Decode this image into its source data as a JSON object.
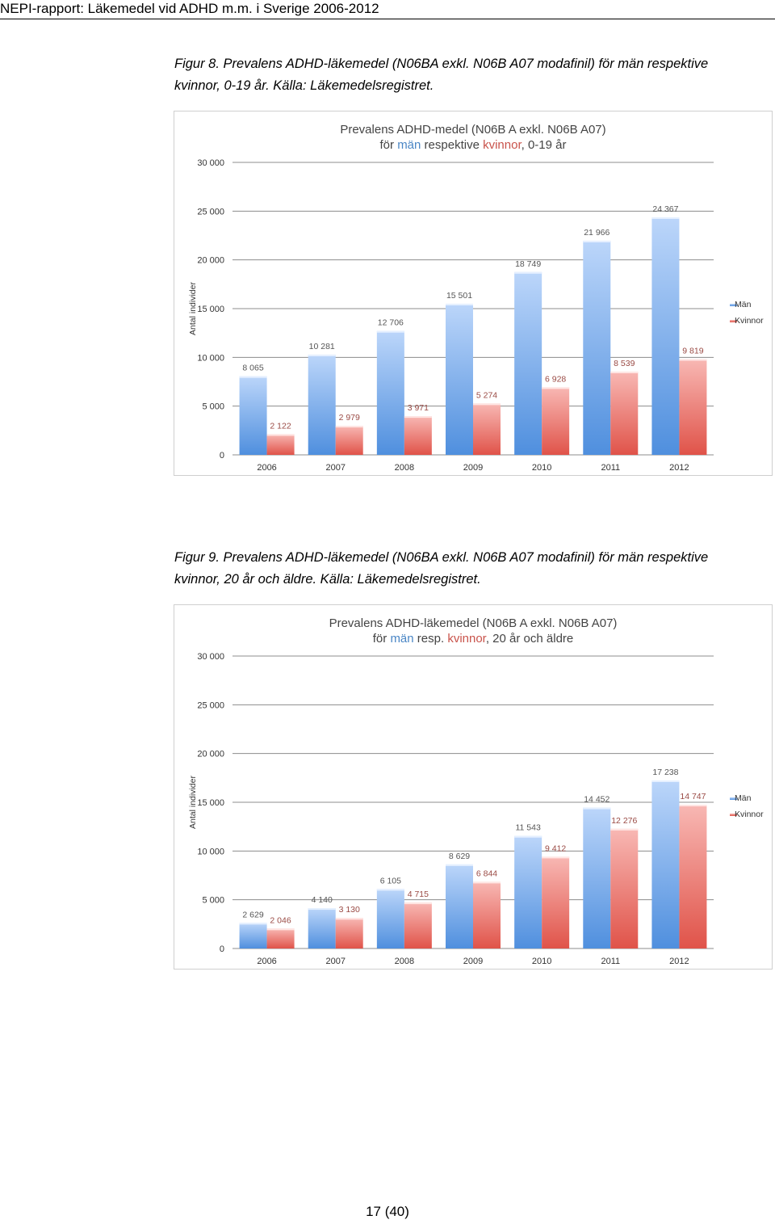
{
  "header": {
    "title": "NEPI-rapport: Läkemedel vid ADHD m.m. i Sverige 2006-2012"
  },
  "figures": [
    {
      "caption": "Figur 8. Prevalens ADHD-läkemedel (N06BA exkl. N06B A07 modafinil) för män respektive kvinnor, 0-19 år. Källa: Läkemedelsregistret.",
      "chart_data": {
        "type": "bar",
        "title_line1": "Prevalens ADHD-medel (N06B A exkl. N06B A07)",
        "title_line2": [
          {
            "text": "för ",
            "role": "plain"
          },
          {
            "text": "män",
            "role": "men"
          },
          {
            "text": " respektive ",
            "role": "plain"
          },
          {
            "text": "kvinnor",
            "role": "women"
          },
          {
            "text": ", 0-19 år",
            "role": "plain"
          }
        ],
        "ylabel": "Antal individer",
        "xlabel": "",
        "ylim": [
          0,
          30000
        ],
        "ytick_values": [
          0,
          5000,
          10000,
          15000,
          20000,
          25000,
          30000
        ],
        "ytick_labels": [
          "0",
          "5 000",
          "10 000",
          "15 000",
          "20 000",
          "25 000",
          "30 000"
        ],
        "categories": [
          "2006",
          "2007",
          "2008",
          "2009",
          "2010",
          "2011",
          "2012"
        ],
        "series": [
          {
            "name": "Män",
            "values": [
              8065,
              10281,
              12706,
              15501,
              18749,
              21966,
              24367
            ],
            "labels": [
              "8 065",
              "10 281",
              "12 706",
              "15 501",
              "18 749",
              "21 966",
              "24 367"
            ]
          },
          {
            "name": "Kvinnor",
            "values": [
              2122,
              2979,
              3971,
              5274,
              6928,
              8539,
              9819
            ],
            "labels": [
              "2 122",
              "2 979",
              "3 971",
              "5 274",
              "6 928",
              "8 539",
              "9 819"
            ]
          }
        ],
        "grid": true,
        "legend_position": "right"
      }
    },
    {
      "caption": "Figur 9. Prevalens ADHD-läkemedel (N06BA exkl. N06B A07 modafinil) för män respektive kvinnor, 20 år och äldre. Källa: Läkemedelsregistret.",
      "chart_data": {
        "type": "bar",
        "title_line1": "Prevalens ADHD-läkemedel (N06B A exkl. N06B A07)",
        "title_line2": [
          {
            "text": "för ",
            "role": "plain"
          },
          {
            "text": "män",
            "role": "men"
          },
          {
            "text": " resp. ",
            "role": "plain"
          },
          {
            "text": "kvinnor",
            "role": "women"
          },
          {
            "text": ", 20 år och äldre",
            "role": "plain"
          }
        ],
        "ylabel": "Antal individer",
        "xlabel": "",
        "ylim": [
          0,
          30000
        ],
        "ytick_values": [
          0,
          5000,
          10000,
          15000,
          20000,
          25000,
          30000
        ],
        "ytick_labels": [
          "0",
          "5 000",
          "10 000",
          "15 000",
          "20 000",
          "25 000",
          "30 000"
        ],
        "categories": [
          "2006",
          "2007",
          "2008",
          "2009",
          "2010",
          "2011",
          "2012"
        ],
        "series": [
          {
            "name": "Män",
            "values": [
              2629,
              4140,
              6105,
              8629,
              11543,
              14452,
              17238
            ],
            "labels": [
              "2 629",
              "4 140",
              "6 105",
              "8 629",
              "11 543",
              "14 452",
              "17 238"
            ]
          },
          {
            "name": "Kvinnor",
            "values": [
              2046,
              3130,
              4715,
              6844,
              9412,
              12276,
              14747
            ],
            "labels": [
              "2 046",
              "3 130",
              "4 715",
              "6 844",
              "9 412",
              "12 276",
              "14 747"
            ]
          }
        ],
        "grid": true,
        "legend_position": "right"
      }
    }
  ],
  "colors": {
    "men_top": "#bcd6fa",
    "men_bottom": "#4f8fde",
    "men_text": "#4a86c5",
    "women_top": "#f8b8b4",
    "women_bottom": "#e05349",
    "women_text": "#c9534b",
    "men_label": "#555555",
    "women_label": "#9a4a44",
    "grid": "#8c8c8c",
    "axis_text": "#333333",
    "title_text": "#444444"
  },
  "footer": {
    "page": "17 (40)"
  }
}
